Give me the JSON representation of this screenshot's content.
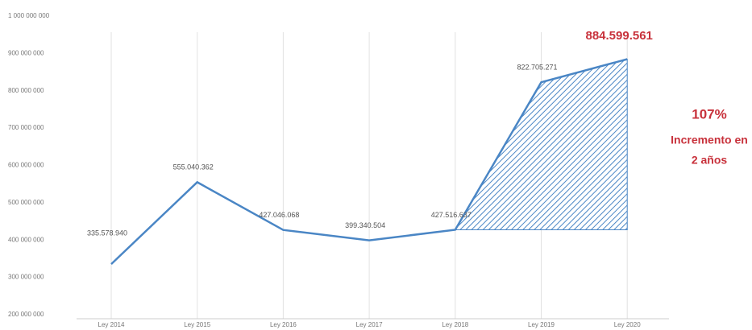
{
  "chart_data": {
    "type": "line",
    "categories": [
      "Ley 2014",
      "Ley 2015",
      "Ley 2016",
      "Ley 2017",
      "Ley 2018",
      "Ley 2019",
      "Ley 2020"
    ],
    "series": [
      {
        "color": "#4a86c5",
        "values": [
          335578940,
          555040362,
          427046068,
          399340504,
          427516637,
          822705271,
          884599561
        ],
        "value_labels": [
          "335.578.940",
          "555.040.362",
          "427.046.068",
          "399.340.504",
          "427.516.637",
          "822.705.271",
          "884.599.561"
        ]
      }
    ],
    "ylim": [
      200000000,
      1000000000
    ],
    "yticks": [
      {
        "value": 200000000,
        "label": "200 000 000"
      },
      {
        "value": 300000000,
        "label": "300 000 000"
      },
      {
        "value": 400000000,
        "label": "400 000 000"
      },
      {
        "value": 500000000,
        "label": "500 000 000"
      },
      {
        "value": 600000000,
        "label": "600 000 000"
      },
      {
        "value": 700000000,
        "label": "700 000 000"
      },
      {
        "value": 800000000,
        "label": "800 000 000"
      },
      {
        "value": 900000000,
        "label": "900 000 000"
      },
      {
        "value": 1000000000,
        "label": "1 000 000 000"
      }
    ],
    "annotations": [
      "107%",
      "Incremento en",
      "2 años"
    ]
  }
}
